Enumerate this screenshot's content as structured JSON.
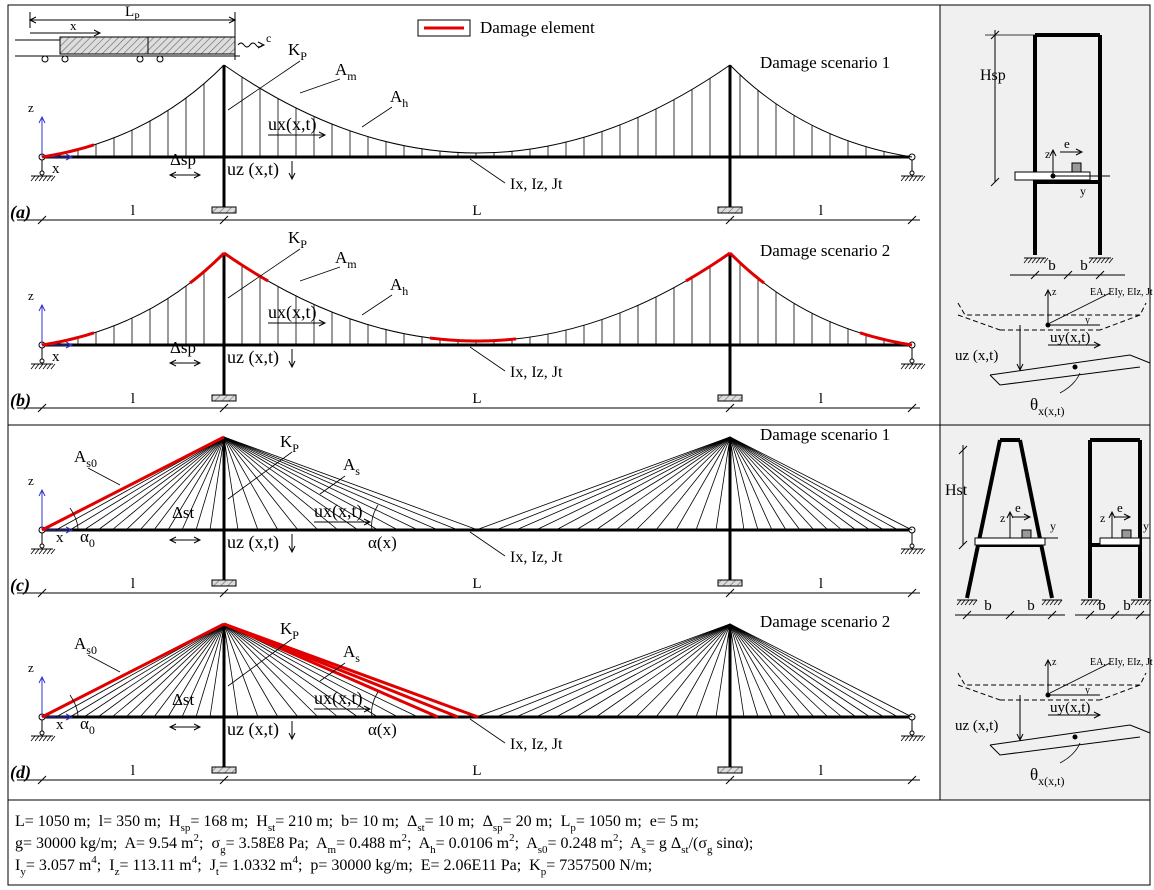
{
  "legend": "Damage element",
  "panels": [
    {
      "label": "(a)",
      "scenario": "Damage scenario 1",
      "vehicle": {
        "length": [
          "L",
          {
            "sub": "P"
          }
        ],
        "x": "x",
        "speed": "c"
      },
      "labels": [
        "z",
        "x",
        "Δsp",
        [
          "K",
          {
            "sub": "P"
          }
        ],
        [
          "A",
          {
            "sub": "m"
          }
        ],
        [
          "A",
          {
            "sub": "h"
          }
        ],
        "ux(x,t)",
        "uz (x,t)",
        "Ix, Iz, Jt"
      ],
      "spans": [
        "l",
        "L",
        "l"
      ]
    },
    {
      "label": "(b)",
      "scenario": "Damage scenario 2",
      "labels": [
        "z",
        "x",
        "Δsp",
        [
          "K",
          {
            "sub": "P"
          }
        ],
        [
          "A",
          {
            "sub": "m"
          }
        ],
        [
          "A",
          {
            "sub": "h"
          }
        ],
        "ux(x,t)",
        "uz (x,t)",
        "Ix, Iz, Jt"
      ],
      "spans": [
        "l",
        "L",
        "l"
      ]
    },
    {
      "label": "(c)",
      "scenario": "Damage scenario 1",
      "labels": [
        "z",
        "x",
        [
          "α",
          {
            "sub": "0"
          }
        ],
        "Δst",
        [
          "K",
          {
            "sub": "P"
          }
        ],
        [
          "A",
          {
            "sub": "s0"
          }
        ],
        [
          "A",
          {
            "sub": "s"
          }
        ],
        "ux(x,t)",
        "uz (x,t)",
        "α(x)",
        "Ix, Iz, Jt"
      ],
      "spans": [
        "l",
        "L",
        "l"
      ]
    },
    {
      "label": "(d)",
      "scenario": "Damage scenario 2",
      "labels": [
        "z",
        "x",
        [
          "α",
          {
            "sub": "0"
          }
        ],
        "Δst",
        [
          "K",
          {
            "sub": "P"
          }
        ],
        [
          "A",
          {
            "sub": "s0"
          }
        ],
        [
          "A",
          {
            "sub": "s"
          }
        ],
        "ux(x,t)",
        "uz (x,t)",
        "α(x)",
        "Ix, Iz, Jt"
      ],
      "spans": [
        "l",
        "L",
        "l"
      ]
    }
  ],
  "sections": {
    "suspension_tower": {
      "height": "Hsp",
      "z": "z",
      "e": "e",
      "y": "y",
      "widths": [
        "b",
        "b"
      ]
    },
    "deck_section_top": {
      "stiffness": "EA, EIy, EIz, Jt",
      "z": "z",
      "y": "y",
      "uz": "uz (x,t)",
      "uy": "uy(x,t)",
      "theta": [
        "θ",
        {
          "sub": "x(x,t)"
        }
      ]
    },
    "cable_stayed_towers": {
      "height": "Hst",
      "a_frame": {
        "z": "z",
        "e": "e",
        "y": "y",
        "widths": [
          "b",
          "b"
        ]
      },
      "portal": {
        "z": "z",
        "e": "e",
        "y": "y",
        "widths": [
          "b",
          "b"
        ]
      }
    },
    "deck_section_bottom": {
      "stiffness": "EA, EIy, EIz, Jt",
      "z": "z",
      "y": "y",
      "uz": "uz (x,t)",
      "uy": "uy(x,t)",
      "theta": [
        "θ",
        {
          "sub": "x(x,t)"
        }
      ]
    }
  },
  "parameters": [
    [
      "L= 1050 m;  l= 350 m;  H",
      {
        "sub": "sp"
      },
      "= 168 m;  H",
      {
        "sub": "st"
      },
      "= 210 m;  b= 10 m;  Δ",
      {
        "sub": "st"
      },
      "= 10 m;  Δ",
      {
        "sub": "sp"
      },
      "= 20 m;  L",
      {
        "sub": "p"
      },
      "= 1050 m;  e= 5 m;"
    ],
    [
      "g= 30000 kg/m;  A= 9.54 m",
      {
        "sup": "2"
      },
      ";  σ",
      {
        "sub": "g"
      },
      "= 3.58E8 Pa;  A",
      {
        "sub": "m"
      },
      "= 0.488 m",
      {
        "sup": "2"
      },
      ";  A",
      {
        "sub": "h"
      },
      "= 0.0106 m",
      {
        "sup": "2"
      },
      ";  A",
      {
        "sub": "s0"
      },
      "= 0.248 m",
      {
        "sup": "2"
      },
      ";  A",
      {
        "sub": "s"
      },
      "= g Δ",
      {
        "sub": "st"
      },
      "/(σ",
      {
        "sub": "g"
      },
      " sinα);"
    ],
    [
      "I",
      {
        "sub": "y"
      },
      "= 3.057 m",
      {
        "sup": "4"
      },
      ";  I",
      {
        "sub": "z"
      },
      "= 113.11 m",
      {
        "sup": "4"
      },
      ";  J",
      {
        "sub": "t"
      },
      "= 1.0332 m",
      {
        "sup": "4"
      },
      ";  p= 30000 kg/m;  E= 2.06E11 Pa;  K",
      {
        "sub": "p"
      },
      "= 7357500 N/m;"
    ]
  ]
}
